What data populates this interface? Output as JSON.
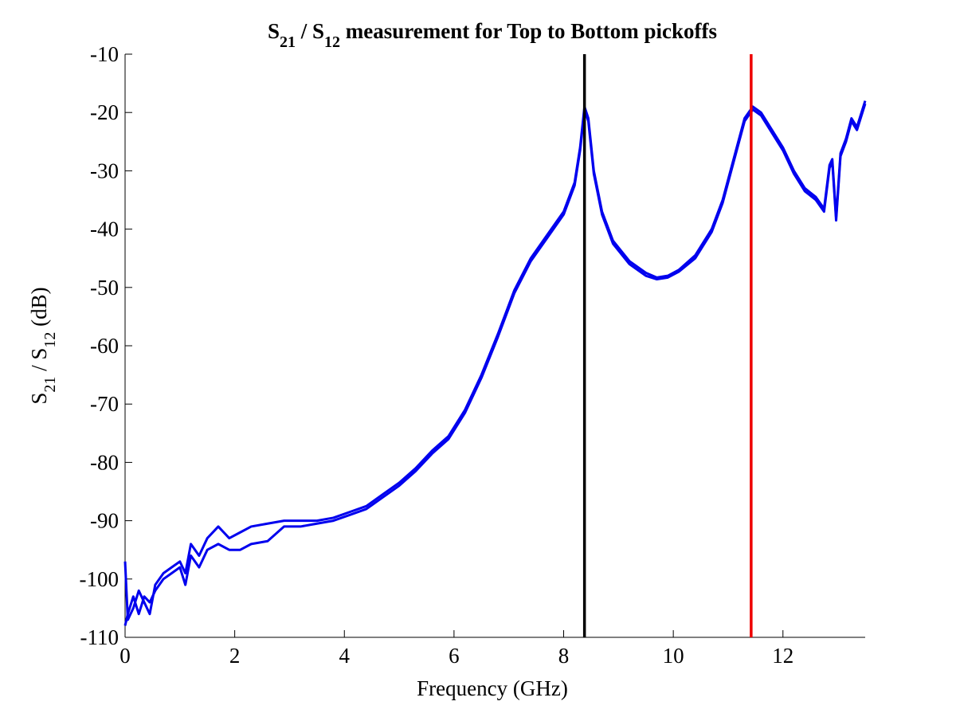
{
  "chart_data": {
    "type": "line",
    "title": [
      "S",
      "21",
      " / S",
      "12",
      " measurement for Top to Bottom pickoffs"
    ],
    "ylabel": [
      "S",
      "21",
      " / S",
      "12",
      " (dB)"
    ],
    "xlabel": "Frequency (GHz)",
    "xlim": [
      0,
      13.5
    ],
    "ylim": [
      -110,
      -10
    ],
    "xticks": [
      0,
      2,
      4,
      6,
      8,
      10,
      12
    ],
    "yticks": [
      -110,
      -100,
      -90,
      -80,
      -70,
      -60,
      -50,
      -40,
      -30,
      -20,
      -10
    ],
    "grid": false,
    "x": [
      0,
      0.05,
      0.15,
      0.25,
      0.35,
      0.45,
      0.55,
      0.7,
      0.85,
      1.0,
      1.1,
      1.2,
      1.35,
      1.5,
      1.7,
      1.9,
      2.1,
      2.3,
      2.6,
      2.9,
      3.2,
      3.5,
      3.8,
      4.1,
      4.4,
      4.7,
      5.0,
      5.3,
      5.6,
      5.9,
      6.2,
      6.5,
      6.8,
      7.1,
      7.4,
      7.7,
      8.0,
      8.2,
      8.3,
      8.38,
      8.45,
      8.55,
      8.7,
      8.9,
      9.2,
      9.5,
      9.7,
      9.9,
      10.1,
      10.4,
      10.7,
      10.9,
      11.1,
      11.3,
      11.45,
      11.6,
      11.8,
      12.0,
      12.2,
      12.4,
      12.6,
      12.75,
      12.85,
      12.9,
      12.97,
      13.05,
      13.15,
      13.25,
      13.35,
      13.5
    ],
    "series": [
      {
        "color": "#0000ee",
        "values": [
          -97,
          -107,
          -105,
          -102,
          -104,
          -106,
          -101,
          -99,
          -98,
          -97,
          -99,
          -94,
          -96,
          -93,
          -91,
          -93,
          -92,
          -91,
          -90.5,
          -90,
          -90,
          -90,
          -89.5,
          -88.5,
          -87.5,
          -85.5,
          -83.5,
          -81,
          -78,
          -75.5,
          -71,
          -65,
          -58,
          -50.5,
          -45,
          -41,
          -37,
          -32,
          -26,
          -19,
          -21,
          -30,
          -37,
          -42,
          -45.5,
          -47.5,
          -48.3,
          -48,
          -47,
          -44.5,
          -40,
          -35,
          -28,
          -21,
          -19,
          -20,
          -23,
          -26,
          -30,
          -33,
          -34.5,
          -36.5,
          -29,
          -28,
          -38,
          -27,
          -24.5,
          -21,
          -22.5,
          -18
        ]
      },
      {
        "color": "#0000ee",
        "values": [
          -108,
          -106,
          -103,
          -106,
          -103,
          -104,
          -102,
          -100,
          -99,
          -98,
          -101,
          -96,
          -98,
          -95,
          -94,
          -95,
          -95,
          -94,
          -93.5,
          -91,
          -91,
          -90.5,
          -90,
          -89,
          -88,
          -86,
          -84,
          -81.5,
          -78.5,
          -76,
          -71.5,
          -65.5,
          -58.5,
          -51,
          -45.5,
          -41.5,
          -37.5,
          -32.5,
          -26.5,
          -19.5,
          -21.5,
          -30.5,
          -37.5,
          -42.5,
          -46,
          -48,
          -48.6,
          -48.3,
          -47.3,
          -45,
          -40.5,
          -35.5,
          -28.5,
          -21.5,
          -19.5,
          -20.5,
          -23.5,
          -26.5,
          -30.5,
          -33.5,
          -35,
          -37,
          -29.5,
          -28.5,
          -38.5,
          -27.5,
          -25,
          -21.5,
          -23,
          -18.5
        ]
      }
    ],
    "vlines": [
      {
        "x": 8.38,
        "color": "#000000"
      },
      {
        "x": 11.42,
        "color": "#ee0000"
      }
    ]
  }
}
